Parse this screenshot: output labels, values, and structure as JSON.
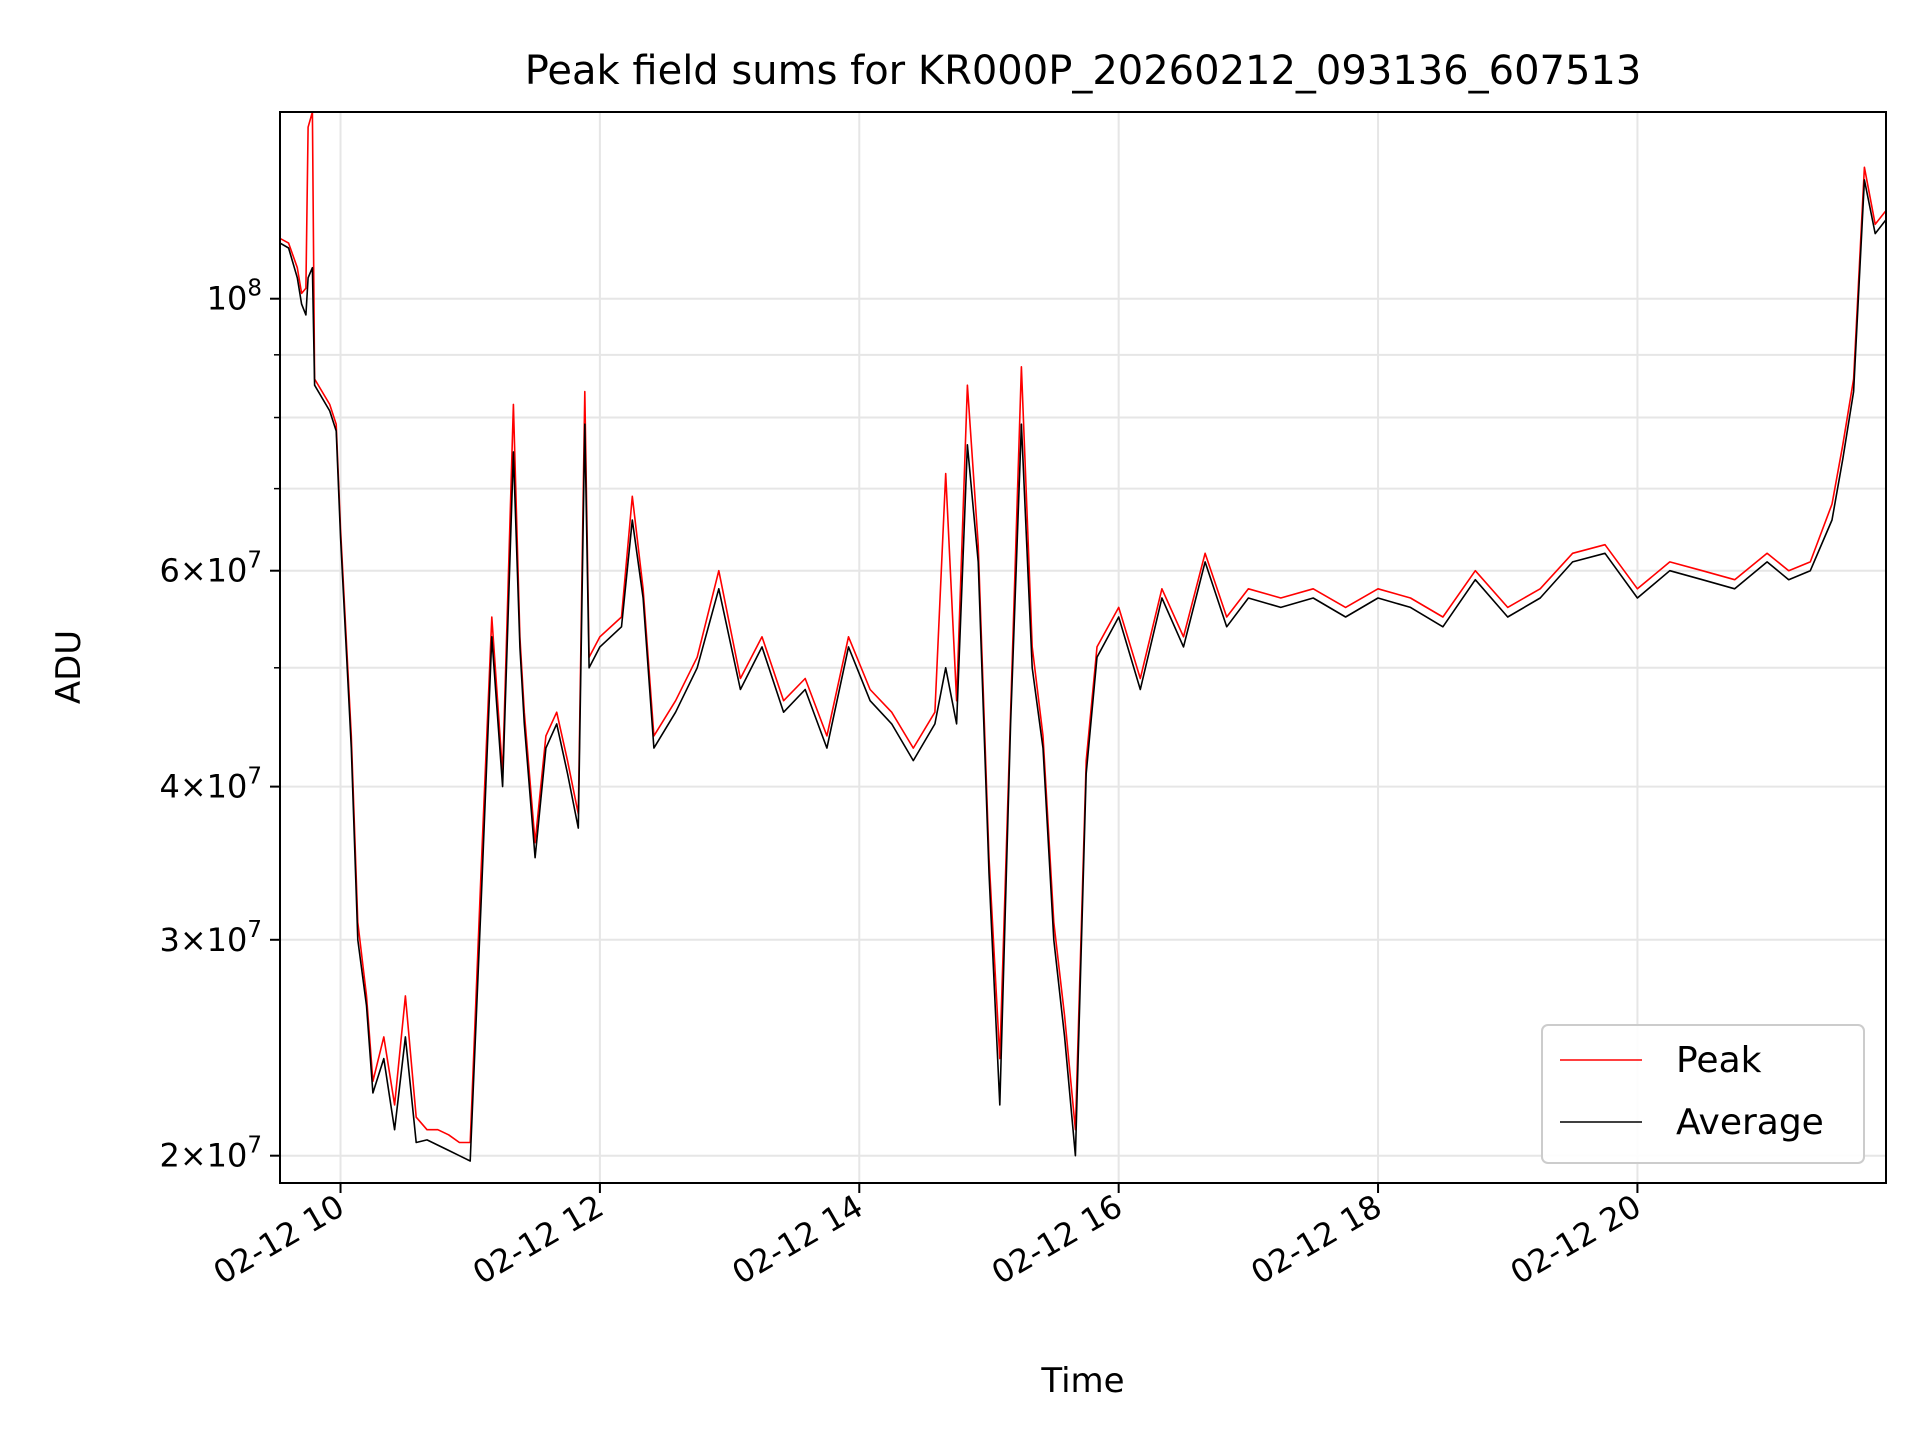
{
  "chart_data": {
    "type": "line",
    "title": "Peak field sums for KR000P_20260212_093136_607513",
    "xlabel": "Time",
    "ylabel": "ADU",
    "yscale": "log",
    "grid": true,
    "legend_position": "lower-right",
    "xlim": [
      "2026-02-12 09:32",
      "2026-02-12 21:55"
    ],
    "ylim": [
      19000000,
      142000000
    ],
    "x_ticks": [
      {
        "t": "2026-02-12 10:00",
        "label": "02-12 10"
      },
      {
        "t": "2026-02-12 12:00",
        "label": "02-12 12"
      },
      {
        "t": "2026-02-12 14:00",
        "label": "02-12 14"
      },
      {
        "t": "2026-02-12 16:00",
        "label": "02-12 16"
      },
      {
        "t": "2026-02-12 18:00",
        "label": "02-12 18"
      },
      {
        "t": "2026-02-12 20:00",
        "label": "02-12 20"
      }
    ],
    "y_ticks": [
      {
        "v": 20000000,
        "mant": "2",
        "exp": "7",
        "label": "2×10^7"
      },
      {
        "v": 30000000,
        "mant": "3",
        "exp": "7",
        "label": "3×10^7"
      },
      {
        "v": 40000000,
        "mant": "4",
        "exp": "7",
        "label": "4×10^7"
      },
      {
        "v": 60000000,
        "mant": "6",
        "exp": "7",
        "label": "6×10^7"
      },
      {
        "v": 100000000,
        "mant": "",
        "exp": "8",
        "label": "10^8"
      }
    ],
    "y_minor_ticks": [
      50000000,
      70000000,
      80000000,
      90000000
    ],
    "series": [
      {
        "name": "Peak",
        "color": "#ff0000",
        "x": [
          "2026-02-12 09:32",
          "2026-02-12 09:36",
          "2026-02-12 09:40",
          "2026-02-12 09:42",
          "2026-02-12 09:44",
          "2026-02-12 09:45",
          "2026-02-12 09:47",
          "2026-02-12 09:48",
          "2026-02-12 09:55",
          "2026-02-12 09:58",
          "2026-02-12 10:00",
          "2026-02-12 10:05",
          "2026-02-12 10:08",
          "2026-02-12 10:12",
          "2026-02-12 10:15",
          "2026-02-12 10:20",
          "2026-02-12 10:25",
          "2026-02-12 10:30",
          "2026-02-12 10:35",
          "2026-02-12 10:40",
          "2026-02-12 10:45",
          "2026-02-12 10:50",
          "2026-02-12 10:55",
          "2026-02-12 11:00",
          "2026-02-12 11:05",
          "2026-02-12 11:10",
          "2026-02-12 11:15",
          "2026-02-12 11:20",
          "2026-02-12 11:23",
          "2026-02-12 11:25",
          "2026-02-12 11:30",
          "2026-02-12 11:35",
          "2026-02-12 11:40",
          "2026-02-12 11:45",
          "2026-02-12 11:50",
          "2026-02-12 11:53",
          "2026-02-12 11:55",
          "2026-02-12 12:00",
          "2026-02-12 12:10",
          "2026-02-12 12:15",
          "2026-02-12 12:20",
          "2026-02-12 12:25",
          "2026-02-12 12:35",
          "2026-02-12 12:45",
          "2026-02-12 12:55",
          "2026-02-12 13:05",
          "2026-02-12 13:15",
          "2026-02-12 13:25",
          "2026-02-12 13:35",
          "2026-02-12 13:45",
          "2026-02-12 13:55",
          "2026-02-12 14:05",
          "2026-02-12 14:15",
          "2026-02-12 14:25",
          "2026-02-12 14:35",
          "2026-02-12 14:40",
          "2026-02-12 14:45",
          "2026-02-12 14:50",
          "2026-02-12 14:55",
          "2026-02-12 15:00",
          "2026-02-12 15:05",
          "2026-02-12 15:10",
          "2026-02-12 15:15",
          "2026-02-12 15:20",
          "2026-02-12 15:25",
          "2026-02-12 15:30",
          "2026-02-12 15:35",
          "2026-02-12 15:40",
          "2026-02-12 15:45",
          "2026-02-12 15:50",
          "2026-02-12 16:00",
          "2026-02-12 16:10",
          "2026-02-12 16:20",
          "2026-02-12 16:30",
          "2026-02-12 16:40",
          "2026-02-12 16:50",
          "2026-02-12 17:00",
          "2026-02-12 17:15",
          "2026-02-12 17:30",
          "2026-02-12 17:45",
          "2026-02-12 18:00",
          "2026-02-12 18:15",
          "2026-02-12 18:30",
          "2026-02-12 18:45",
          "2026-02-12 19:00",
          "2026-02-12 19:15",
          "2026-02-12 19:30",
          "2026-02-12 19:45",
          "2026-02-12 20:00",
          "2026-02-12 20:15",
          "2026-02-12 20:30",
          "2026-02-12 20:45",
          "2026-02-12 21:00",
          "2026-02-12 21:10",
          "2026-02-12 21:20",
          "2026-02-12 21:30",
          "2026-02-12 21:35",
          "2026-02-12 21:40",
          "2026-02-12 21:45",
          "2026-02-12 21:50",
          "2026-02-12 21:55"
        ],
        "values": [
          112000000,
          111000000,
          106000000,
          101000000,
          102000000,
          138000000,
          142000000,
          86000000,
          82000000,
          79000000,
          65000000,
          44000000,
          31000000,
          27000000,
          23000000,
          25000000,
          22000000,
          27000000,
          21500000,
          21000000,
          21000000,
          20800000,
          20500000,
          20500000,
          34000000,
          55000000,
          41000000,
          82000000,
          53000000,
          46000000,
          36000000,
          44000000,
          46000000,
          42000000,
          38000000,
          84000000,
          51000000,
          53000000,
          55000000,
          69000000,
          58000000,
          44000000,
          47000000,
          51000000,
          60000000,
          49000000,
          53000000,
          47000000,
          49000000,
          44000000,
          53000000,
          48000000,
          46000000,
          43000000,
          46000000,
          72000000,
          47000000,
          85000000,
          63000000,
          35000000,
          24000000,
          46000000,
          88000000,
          52000000,
          44000000,
          31000000,
          26000000,
          21000000,
          42000000,
          52000000,
          56000000,
          49000000,
          58000000,
          53000000,
          62000000,
          55000000,
          58000000,
          57000000,
          58000000,
          56000000,
          58000000,
          57000000,
          55000000,
          60000000,
          56000000,
          58000000,
          62000000,
          63000000,
          58000000,
          61000000,
          60000000,
          59000000,
          62000000,
          60000000,
          61000000,
          68000000,
          76000000,
          86000000,
          128000000,
          115000000,
          118000000
        ]
      },
      {
        "name": "Average",
        "color": "#000000",
        "x": [
          "2026-02-12 09:32",
          "2026-02-12 09:36",
          "2026-02-12 09:40",
          "2026-02-12 09:42",
          "2026-02-12 09:44",
          "2026-02-12 09:45",
          "2026-02-12 09:47",
          "2026-02-12 09:48",
          "2026-02-12 09:55",
          "2026-02-12 09:58",
          "2026-02-12 10:00",
          "2026-02-12 10:05",
          "2026-02-12 10:08",
          "2026-02-12 10:12",
          "2026-02-12 10:15",
          "2026-02-12 10:20",
          "2026-02-12 10:25",
          "2026-02-12 10:30",
          "2026-02-12 10:35",
          "2026-02-12 10:40",
          "2026-02-12 10:45",
          "2026-02-12 10:50",
          "2026-02-12 10:55",
          "2026-02-12 11:00",
          "2026-02-12 11:05",
          "2026-02-12 11:10",
          "2026-02-12 11:15",
          "2026-02-12 11:20",
          "2026-02-12 11:23",
          "2026-02-12 11:25",
          "2026-02-12 11:30",
          "2026-02-12 11:35",
          "2026-02-12 11:40",
          "2026-02-12 11:45",
          "2026-02-12 11:50",
          "2026-02-12 11:53",
          "2026-02-12 11:55",
          "2026-02-12 12:00",
          "2026-02-12 12:10",
          "2026-02-12 12:15",
          "2026-02-12 12:20",
          "2026-02-12 12:25",
          "2026-02-12 12:35",
          "2026-02-12 12:45",
          "2026-02-12 12:55",
          "2026-02-12 13:05",
          "2026-02-12 13:15",
          "2026-02-12 13:25",
          "2026-02-12 13:35",
          "2026-02-12 13:45",
          "2026-02-12 13:55",
          "2026-02-12 14:05",
          "2026-02-12 14:15",
          "2026-02-12 14:25",
          "2026-02-12 14:35",
          "2026-02-12 14:40",
          "2026-02-12 14:45",
          "2026-02-12 14:50",
          "2026-02-12 14:55",
          "2026-02-12 15:00",
          "2026-02-12 15:05",
          "2026-02-12 15:10",
          "2026-02-12 15:15",
          "2026-02-12 15:20",
          "2026-02-12 15:25",
          "2026-02-12 15:30",
          "2026-02-12 15:35",
          "2026-02-12 15:40",
          "2026-02-12 15:45",
          "2026-02-12 15:50",
          "2026-02-12 16:00",
          "2026-02-12 16:10",
          "2026-02-12 16:20",
          "2026-02-12 16:30",
          "2026-02-12 16:40",
          "2026-02-12 16:50",
          "2026-02-12 17:00",
          "2026-02-12 17:15",
          "2026-02-12 17:30",
          "2026-02-12 17:45",
          "2026-02-12 18:00",
          "2026-02-12 18:15",
          "2026-02-12 18:30",
          "2026-02-12 18:45",
          "2026-02-12 19:00",
          "2026-02-12 19:15",
          "2026-02-12 19:30",
          "2026-02-12 19:45",
          "2026-02-12 20:00",
          "2026-02-12 20:15",
          "2026-02-12 20:30",
          "2026-02-12 20:45",
          "2026-02-12 21:00",
          "2026-02-12 21:10",
          "2026-02-12 21:20",
          "2026-02-12 21:30",
          "2026-02-12 21:35",
          "2026-02-12 21:40",
          "2026-02-12 21:45",
          "2026-02-12 21:50",
          "2026-02-12 21:55"
        ],
        "values": [
          111000000,
          110000000,
          104000000,
          99000000,
          97000000,
          104000000,
          106000000,
          85000000,
          81000000,
          78000000,
          64000000,
          43000000,
          30000000,
          26500000,
          22500000,
          24000000,
          21000000,
          25000000,
          20500000,
          20600000,
          20400000,
          20200000,
          20000000,
          19800000,
          32000000,
          53000000,
          40000000,
          75000000,
          52000000,
          45000000,
          35000000,
          43000000,
          45000000,
          41000000,
          37000000,
          79000000,
          50000000,
          52000000,
          54000000,
          66000000,
          57000000,
          43000000,
          46000000,
          50000000,
          58000000,
          48000000,
          52000000,
          46000000,
          48000000,
          43000000,
          52000000,
          47000000,
          45000000,
          42000000,
          45000000,
          50000000,
          45000000,
          76000000,
          61000000,
          34000000,
          22000000,
          45000000,
          79000000,
          50000000,
          43000000,
          30000000,
          25000000,
          20000000,
          41000000,
          51000000,
          55000000,
          48000000,
          57000000,
          52000000,
          61000000,
          54000000,
          57000000,
          56000000,
          57000000,
          55000000,
          57000000,
          56000000,
          54000000,
          59000000,
          55000000,
          57000000,
          61000000,
          62000000,
          57000000,
          60000000,
          59000000,
          58000000,
          61000000,
          59000000,
          60000000,
          66000000,
          74000000,
          84000000,
          125000000,
          113000000,
          116000000
        ]
      }
    ]
  }
}
